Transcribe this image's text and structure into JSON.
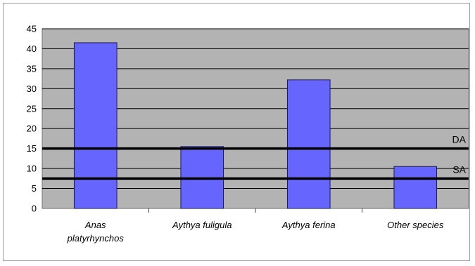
{
  "chart_data": {
    "type": "bar",
    "categories": [
      [
        "Anas",
        "platyrhynchos"
      ],
      [
        "Aythya fuligula"
      ],
      [
        "Aythya ferina"
      ],
      [
        "Other species"
      ]
    ],
    "values": [
      41.5,
      15.5,
      32.2,
      10.5
    ],
    "ylim": [
      0,
      45
    ],
    "yticks": [
      "0",
      "5",
      "10",
      "15",
      "20",
      "25",
      "30",
      "35",
      "40",
      "45"
    ],
    "grid": true,
    "reference_lines": [
      {
        "label": "DA",
        "value": 15
      },
      {
        "label": "SA",
        "value": 7.5
      }
    ],
    "colors": {
      "bar": "#6666ff",
      "bar_edge": "#1a1a4d",
      "plot_background": "#b3b3b3",
      "gridline": "#000000",
      "reference_line": "#000000"
    }
  }
}
